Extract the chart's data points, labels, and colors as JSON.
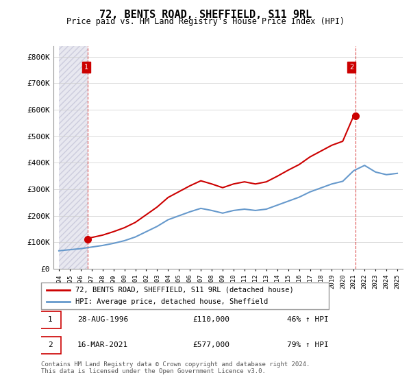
{
  "title": "72, BENTS ROAD, SHEFFIELD, S11 9RL",
  "subtitle": "Price paid vs. HM Land Registry's House Price Index (HPI)",
  "property_label": "72, BENTS ROAD, SHEFFIELD, S11 9RL (detached house)",
  "hpi_label": "HPI: Average price, detached house, Sheffield",
  "property_color": "#cc0000",
  "hpi_color": "#6699cc",
  "background_hatch_color": "#e8e8f0",
  "transaction1_date": "28-AUG-1996",
  "transaction1_price": 110000,
  "transaction1_pct": "46% ↑ HPI",
  "transaction2_date": "16-MAR-2021",
  "transaction2_price": 577000,
  "transaction2_pct": "79% ↑ HPI",
  "ylabel": "",
  "ylim": [
    0,
    840000
  ],
  "yticks": [
    0,
    100000,
    200000,
    300000,
    400000,
    500000,
    600000,
    700000,
    800000
  ],
  "ytick_labels": [
    "£0",
    "£100K",
    "£200K",
    "£300K",
    "£400K",
    "£500K",
    "£600K",
    "£700K",
    "£800K"
  ],
  "footer": "Contains HM Land Registry data © Crown copyright and database right 2024.\nThis data is licensed under the Open Government Licence v3.0.",
  "hpi_years": [
    1994,
    1995,
    1996,
    1997,
    1998,
    1999,
    2000,
    2001,
    2002,
    2003,
    2004,
    2005,
    2006,
    2007,
    2008,
    2009,
    2010,
    2011,
    2012,
    2013,
    2014,
    2015,
    2016,
    2017,
    2018,
    2019,
    2020,
    2021,
    2022,
    2023,
    2024,
    2025
  ],
  "hpi_values": [
    68000,
    72000,
    76000,
    82000,
    88000,
    96000,
    106000,
    120000,
    140000,
    160000,
    185000,
    200000,
    215000,
    228000,
    220000,
    210000,
    220000,
    225000,
    220000,
    225000,
    240000,
    255000,
    270000,
    290000,
    305000,
    320000,
    330000,
    370000,
    390000,
    365000,
    355000,
    360000
  ],
  "prop_years": [
    1996.66,
    2021.2
  ],
  "prop_values": [
    110000,
    577000
  ],
  "prop_line_years": [
    1994,
    1995,
    1996,
    1997,
    1998,
    1999,
    2000,
    2001,
    2002,
    2003,
    2004,
    2005,
    2006,
    2007,
    2008,
    2009,
    2010,
    2011,
    2012,
    2013,
    2014,
    2015,
    2016,
    2017,
    2018,
    2019,
    2020,
    2021,
    2022,
    2023,
    2024,
    2025
  ],
  "prop_line_values": [
    null,
    null,
    null,
    118000,
    127000,
    140000,
    155000,
    175000,
    204000,
    233000,
    269000,
    291000,
    313000,
    332000,
    320000,
    306000,
    320000,
    328000,
    320000,
    328000,
    349000,
    372000,
    393000,
    422000,
    444000,
    466000,
    481000,
    577000,
    null,
    null,
    null,
    null
  ],
  "hatch_x_start": 1994,
  "hatch_x_end": 1996.66,
  "xtick_years": [
    1994,
    1995,
    1996,
    1997,
    1998,
    1999,
    2000,
    2001,
    2002,
    2003,
    2004,
    2005,
    2006,
    2007,
    2008,
    2009,
    2010,
    2011,
    2012,
    2013,
    2014,
    2015,
    2016,
    2017,
    2018,
    2019,
    2020,
    2021,
    2022,
    2023,
    2024,
    2025
  ]
}
